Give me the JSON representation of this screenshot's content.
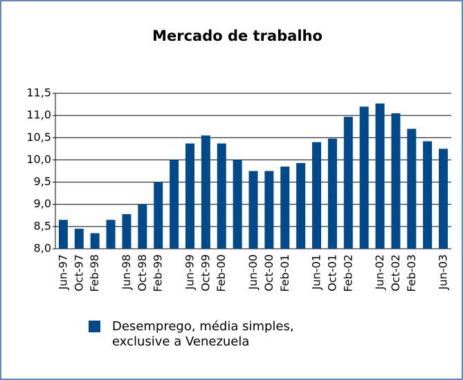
{
  "chart_data": {
    "type": "bar",
    "title": "Mercado de trabalho",
    "categories": [
      "Jun-97",
      "Oct-97",
      "Feb-98",
      null,
      "Jun-98",
      "Oct-98",
      "Feb-99",
      null,
      "Jun-99",
      "Oct-99",
      "Feb-00",
      null,
      "Jun-00",
      "Oct-00",
      "Feb-01",
      null,
      "Jun-01",
      "Oct-01",
      "Feb-02",
      null,
      "Jun-02",
      "Oct-02",
      "Feb-03",
      null,
      "Jun-03"
    ],
    "series": [
      {
        "name": "Desemprego, média simples, exclusive a Venezuela",
        "color": "#004a8c",
        "values": [
          8.65,
          8.45,
          8.35,
          8.65,
          8.78,
          9.0,
          9.5,
          10.0,
          10.37,
          10.55,
          10.37,
          10.0,
          9.75,
          9.75,
          9.85,
          9.93,
          10.4,
          10.48,
          10.97,
          11.2,
          11.27,
          11.05,
          10.7,
          10.42,
          10.25
        ]
      }
    ],
    "ylim": [
      8.0,
      11.5
    ],
    "yticks": [
      {
        "value": 8.0,
        "label": "8,0"
      },
      {
        "value": 8.5,
        "label": "8,5"
      },
      {
        "value": 9.0,
        "label": "9,0"
      },
      {
        "value": 9.5,
        "label": "9,5"
      },
      {
        "value": 10.0,
        "label": "10,0"
      },
      {
        "value": 10.5,
        "label": "10,5"
      },
      {
        "value": 11.0,
        "label": "11,0"
      },
      {
        "value": 11.5,
        "label": "11,5"
      }
    ],
    "grid": true,
    "legend": "bottom"
  }
}
